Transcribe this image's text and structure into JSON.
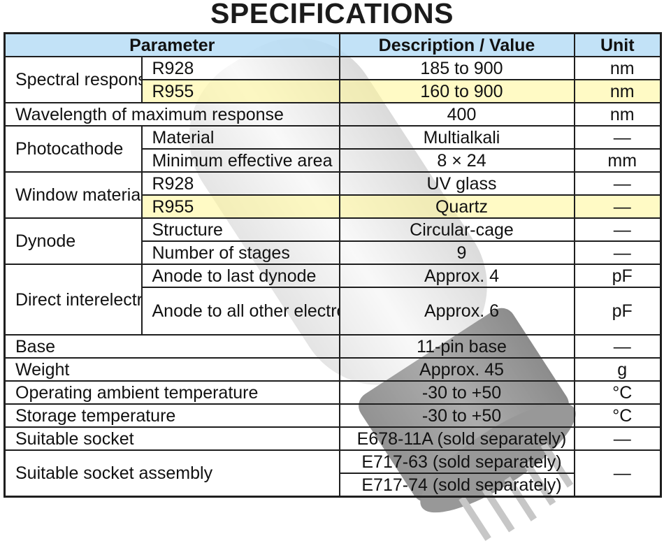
{
  "title": "SPECIFICATIONS",
  "header": {
    "parameter": "Parameter",
    "value": "Description / Value",
    "unit": "Unit"
  },
  "rows": {
    "spectral": {
      "label": "Spectral response",
      "r928": {
        "sub": "R928",
        "value": "185 to 900",
        "unit": "nm"
      },
      "r955": {
        "sub": "R955",
        "value": "160 to 900",
        "unit": "nm"
      }
    },
    "wavelength": {
      "label": "Wavelength of maximum response",
      "value": "400",
      "unit": "nm"
    },
    "photocathode": {
      "label": "Photocathode",
      "material": {
        "sub": "Material",
        "value": "Multialkali",
        "unit": "—"
      },
      "area": {
        "sub": "Minimum effective area",
        "value": "8 × 24",
        "unit": "mm"
      }
    },
    "window": {
      "label": "Window material",
      "r928": {
        "sub": "R928",
        "value": "UV glass",
        "unit": "—"
      },
      "r955": {
        "sub": "R955",
        "value": "Quartz",
        "unit": "—"
      }
    },
    "dynode": {
      "label": "Dynode",
      "structure": {
        "sub": "Structure",
        "value": "Circular-cage",
        "unit": "—"
      },
      "stages": {
        "sub": "Number of stages",
        "value": "9",
        "unit": "—"
      }
    },
    "capacitance": {
      "label": "Direct interelectrode capacitances",
      "last": {
        "sub": "Anode to last dynode",
        "value": "Approx. 4",
        "unit": "pF"
      },
      "other": {
        "sub": "Anode to all other electrodes",
        "value": "Approx. 6",
        "unit": "pF"
      }
    },
    "base": {
      "label": "Base",
      "value": "11-pin base",
      "unit": "—"
    },
    "weight": {
      "label": "Weight",
      "value": "Approx. 45",
      "unit": "g"
    },
    "operating": {
      "label": "Operating ambient temperature",
      "value": "-30 to +50",
      "unit": "°C"
    },
    "storage": {
      "label": "Storage temperature",
      "value": "-30 to +50",
      "unit": "°C"
    },
    "socket": {
      "label": "Suitable socket",
      "value": "E678-11A (sold separately)",
      "unit": "—"
    },
    "assembly": {
      "label": "Suitable socket assembly",
      "value1": "E717-63 (sold separately)",
      "value2": "E717-74 (sold separately)",
      "unit": "—"
    }
  },
  "colors": {
    "header_bg": "#b4dcf5",
    "highlight": "#fff696",
    "border": "#1e1e1e"
  }
}
